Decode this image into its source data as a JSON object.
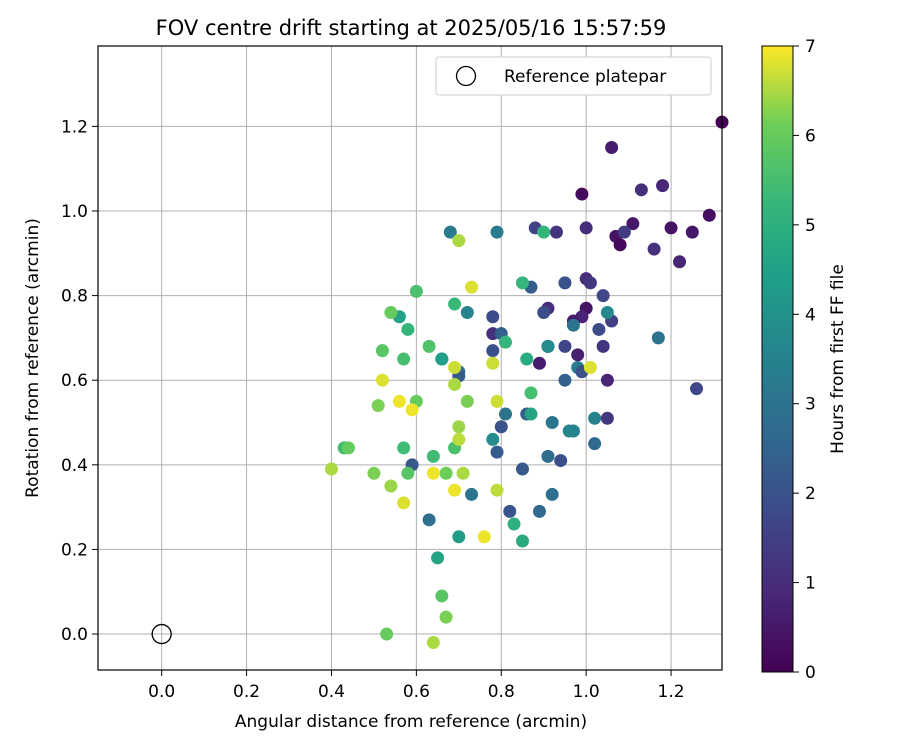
{
  "chart_data": {
    "type": "scatter",
    "title": "FOV centre drift starting at 2025/05/16 15:57:59",
    "xlabel": "Angular distance from reference (arcmin)",
    "ylabel": "Rotation from reference (arcmin)",
    "xlim": [
      -0.15,
      1.32
    ],
    "ylim": [
      -0.085,
      1.39
    ],
    "xticks": [
      "0.0",
      "0.2",
      "0.4",
      "0.6",
      "0.8",
      "1.0",
      "1.2"
    ],
    "xtick_values": [
      0.0,
      0.2,
      0.4,
      0.6,
      0.8,
      1.0,
      1.2
    ],
    "yticks": [
      "0.0",
      "0.2",
      "0.4",
      "0.6",
      "0.8",
      "1.0",
      "1.2"
    ],
    "ytick_values": [
      0.0,
      0.2,
      0.4,
      0.6,
      0.8,
      1.0,
      1.2
    ],
    "grid": true,
    "legend": {
      "entries": [
        "Reference platepar"
      ],
      "placement": "top-right"
    },
    "reference_point": {
      "x": 0.0,
      "y": 0.0,
      "label": "Reference platepar"
    },
    "colorbar": {
      "label": "Hours from first FF file",
      "range": [
        0,
        7
      ],
      "ticks": [
        "0",
        "1",
        "2",
        "3",
        "4",
        "5",
        "6",
        "7"
      ],
      "colormap": "viridis"
    },
    "points": [
      [
        1.32,
        1.21,
        0.0
      ],
      [
        0.99,
        1.04,
        0.2
      ],
      [
        1.06,
        1.15,
        0.6
      ],
      [
        1.13,
        1.05,
        1.1
      ],
      [
        1.18,
        1.06,
        0.9
      ],
      [
        1.29,
        0.99,
        0.3
      ],
      [
        1.25,
        0.95,
        0.5
      ],
      [
        1.2,
        0.96,
        0.4
      ],
      [
        1.11,
        0.97,
        0.5
      ],
      [
        1.07,
        0.94,
        0.4
      ],
      [
        1.08,
        0.92,
        0.2
      ],
      [
        1.09,
        0.95,
        1.4
      ],
      [
        1.16,
        0.91,
        1.1
      ],
      [
        1.22,
        0.88,
        0.8
      ],
      [
        1.0,
        0.96,
        1.0
      ],
      [
        0.93,
        0.95,
        1.2
      ],
      [
        0.88,
        0.96,
        1.6
      ],
      [
        1.0,
        0.84,
        1.0
      ],
      [
        1.01,
        0.83,
        1.3
      ],
      [
        1.04,
        0.8,
        1.7
      ],
      [
        0.95,
        0.83,
        2.0
      ],
      [
        0.87,
        0.82,
        2.3
      ],
      [
        0.91,
        0.77,
        1.0
      ],
      [
        0.9,
        0.76,
        1.9
      ],
      [
        1.0,
        0.77,
        0.4
      ],
      [
        0.99,
        0.75,
        0.8
      ],
      [
        0.97,
        0.74,
        0.6
      ],
      [
        1.06,
        0.74,
        1.5
      ],
      [
        1.03,
        0.72,
        1.8
      ],
      [
        0.78,
        0.75,
        1.8
      ],
      [
        0.78,
        0.71,
        1.1
      ],
      [
        0.8,
        0.71,
        2.4
      ],
      [
        0.91,
        0.68,
        0.9
      ],
      [
        0.95,
        0.68,
        1.7
      ],
      [
        0.89,
        0.64,
        0.6
      ],
      [
        0.98,
        0.66,
        0.7
      ],
      [
        1.04,
        0.68,
        1.2
      ],
      [
        0.78,
        0.67,
        2.0
      ],
      [
        1.17,
        0.7,
        3.0
      ],
      [
        0.98,
        0.63,
        3.3
      ],
      [
        0.99,
        0.62,
        2.0
      ],
      [
        0.95,
        0.6,
        2.4
      ],
      [
        1.05,
        0.6,
        0.8
      ],
      [
        1.05,
        0.51,
        1.3
      ],
      [
        1.02,
        0.51,
        3.5
      ],
      [
        1.05,
        0.76,
        3.7
      ],
      [
        1.26,
        0.58,
        1.7
      ],
      [
        0.97,
        0.73,
        3.0
      ],
      [
        0.91,
        0.68,
        3.8
      ],
      [
        0.86,
        0.52,
        2.3
      ],
      [
        0.81,
        0.52,
        3.0
      ],
      [
        0.8,
        0.49,
        2.0
      ],
      [
        0.92,
        0.5,
        3.1
      ],
      [
        0.79,
        0.43,
        2.3
      ],
      [
        0.91,
        0.42,
        2.8
      ],
      [
        0.94,
        0.41,
        1.9
      ],
      [
        0.85,
        0.39,
        2.2
      ],
      [
        1.02,
        0.45,
        2.7
      ],
      [
        0.97,
        0.48,
        3.5
      ],
      [
        0.92,
        0.33,
        2.9
      ],
      [
        0.82,
        0.29,
        2.1
      ],
      [
        0.89,
        0.29,
        2.7
      ],
      [
        0.73,
        0.33,
        3.1
      ],
      [
        0.63,
        0.27,
        2.9
      ],
      [
        0.59,
        0.4,
        2.2
      ],
      [
        0.7,
        0.62,
        2.8
      ],
      [
        0.7,
        0.61,
        2.3
      ],
      [
        0.66,
        0.65,
        3.0
      ],
      [
        0.72,
        0.76,
        3.5
      ],
      [
        0.68,
        0.95,
        3.3
      ],
      [
        0.79,
        0.95,
        3.3
      ],
      [
        0.9,
        0.95,
        5.2
      ],
      [
        0.85,
        0.83,
        5.2
      ],
      [
        0.81,
        0.69,
        5.2
      ],
      [
        0.86,
        0.65,
        4.8
      ],
      [
        0.87,
        0.52,
        4.6
      ],
      [
        0.87,
        0.57,
        5.5
      ],
      [
        0.78,
        0.46,
        3.8
      ],
      [
        0.96,
        0.48,
        3.6
      ],
      [
        0.85,
        0.22,
        4.8
      ],
      [
        0.83,
        0.26,
        5.0
      ],
      [
        0.7,
        0.23,
        4.3
      ],
      [
        0.65,
        0.18,
        4.6
      ],
      [
        0.66,
        0.65,
        4.4
      ],
      [
        0.69,
        0.78,
        5.3
      ],
      [
        0.56,
        0.75,
        4.5
      ],
      [
        0.58,
        0.72,
        5.2
      ],
      [
        0.6,
        0.81,
        5.6
      ],
      [
        0.52,
        0.67,
        5.8
      ],
      [
        0.57,
        0.65,
        5.5
      ],
      [
        0.54,
        0.76,
        6.0
      ],
      [
        0.63,
        0.68,
        5.7
      ],
      [
        0.51,
        0.54,
        6.2
      ],
      [
        0.6,
        0.55,
        6.0
      ],
      [
        0.58,
        0.38,
        5.8
      ],
      [
        0.57,
        0.44,
        5.4
      ],
      [
        0.64,
        0.42,
        5.4
      ],
      [
        0.69,
        0.44,
        5.6
      ],
      [
        0.43,
        0.44,
        5.4
      ],
      [
        0.44,
        0.44,
        6.0
      ],
      [
        0.4,
        0.39,
        6.5
      ],
      [
        0.5,
        0.38,
        6.2
      ],
      [
        0.54,
        0.35,
        6.4
      ],
      [
        0.57,
        0.31,
        6.8
      ],
      [
        0.67,
        0.38,
        6.1
      ],
      [
        0.71,
        0.38,
        6.5
      ],
      [
        0.67,
        0.04,
        6.2
      ],
      [
        0.66,
        0.09,
        5.8
      ],
      [
        0.64,
        -0.02,
        6.5
      ],
      [
        0.53,
        0.0,
        6.0
      ],
      [
        0.52,
        0.6,
        6.8
      ],
      [
        0.56,
        0.55,
        6.9
      ],
      [
        0.59,
        0.53,
        6.9
      ],
      [
        0.69,
        0.63,
        6.7
      ],
      [
        0.69,
        0.59,
        6.5
      ],
      [
        0.72,
        0.55,
        6.2
      ],
      [
        0.7,
        0.49,
        6.4
      ],
      [
        0.7,
        0.46,
        6.6
      ],
      [
        0.64,
        0.38,
        6.9
      ],
      [
        0.73,
        0.82,
        6.8
      ],
      [
        0.7,
        0.93,
        6.5
      ],
      [
        0.78,
        0.64,
        6.7
      ],
      [
        0.79,
        0.55,
        6.7
      ],
      [
        0.79,
        0.34,
        6.6
      ],
      [
        0.69,
        0.34,
        6.9
      ],
      [
        0.76,
        0.23,
        6.9
      ],
      [
        1.01,
        0.63,
        6.8
      ]
    ]
  }
}
